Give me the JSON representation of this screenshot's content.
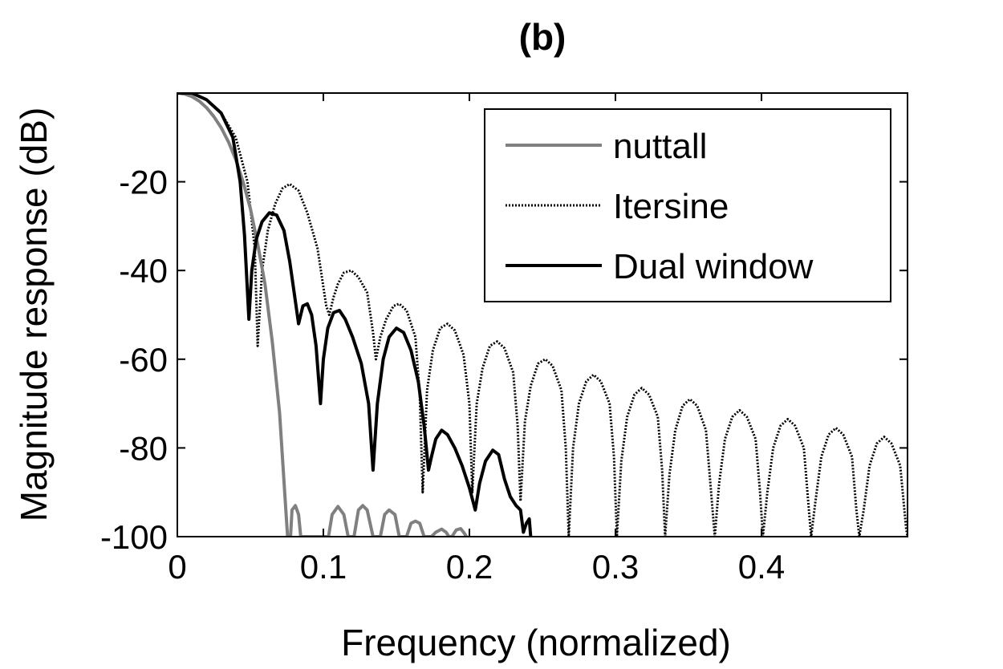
{
  "chart_data": {
    "type": "line",
    "title": "(b)",
    "xlabel": "Frequency (normalized)",
    "ylabel": "Magnitude response (dB)",
    "xlim": [
      0,
      0.5
    ],
    "ylim": [
      -100,
      0
    ],
    "xticks": [
      0,
      0.1,
      0.2,
      0.3,
      0.4
    ],
    "xtick_labels": [
      "0",
      "0.1",
      "0.2",
      "0.3",
      "0.4"
    ],
    "yticks": [
      -20,
      -40,
      -60,
      -80,
      -100
    ],
    "ytick_labels": [
      "-20",
      "-40",
      "-60",
      "-80",
      "-100"
    ],
    "grid": false,
    "legend_position": "top-right",
    "series": [
      {
        "name": "nuttall",
        "color": "#808080",
        "style": "solid",
        "points": [
          [
            0,
            0
          ],
          [
            0.005,
            -0.2
          ],
          [
            0.01,
            -0.8
          ],
          [
            0.015,
            -1.8
          ],
          [
            0.02,
            -3.3
          ],
          [
            0.025,
            -5.3
          ],
          [
            0.03,
            -7.8
          ],
          [
            0.035,
            -11
          ],
          [
            0.04,
            -15
          ],
          [
            0.045,
            -20
          ],
          [
            0.05,
            -26
          ],
          [
            0.055,
            -34
          ],
          [
            0.06,
            -43
          ],
          [
            0.065,
            -56
          ],
          [
            0.07,
            -72
          ],
          [
            0.0735,
            -90
          ],
          [
            0.0755,
            -100
          ],
          [
            0.0775,
            -100
          ],
          [
            0.0785,
            -94
          ],
          [
            0.0808,
            -93
          ],
          [
            0.083,
            -95
          ],
          [
            0.0845,
            -100
          ],
          [
            0.1035,
            -100
          ],
          [
            0.106,
            -95
          ],
          [
            0.11,
            -93.2
          ],
          [
            0.114,
            -95
          ],
          [
            0.117,
            -100
          ],
          [
            0.121,
            -100
          ],
          [
            0.124,
            -94
          ],
          [
            0.127,
            -93
          ],
          [
            0.13,
            -94
          ],
          [
            0.134,
            -100
          ],
          [
            0.139,
            -100
          ],
          [
            0.142,
            -95
          ],
          [
            0.145,
            -94
          ],
          [
            0.149,
            -95
          ],
          [
            0.152,
            -100
          ],
          [
            0.157,
            -100
          ],
          [
            0.16,
            -97
          ],
          [
            0.163,
            -96.5
          ],
          [
            0.166,
            -97
          ],
          [
            0.169,
            -100
          ],
          [
            0.174,
            -100
          ],
          [
            0.177,
            -99
          ],
          [
            0.181,
            -98.3
          ],
          [
            0.184,
            -99
          ],
          [
            0.186,
            -100
          ],
          [
            0.188,
            -100
          ],
          [
            0.191,
            -98.5
          ],
          [
            0.194,
            -98.2
          ],
          [
            0.196,
            -99
          ],
          [
            0.198,
            -100
          ]
        ]
      },
      {
        "name": "Itersine",
        "color": "#000000",
        "style": "dotted",
        "points": [
          [
            0,
            0
          ],
          [
            0.01,
            0
          ],
          [
            0.02,
            -1.5
          ],
          [
            0.03,
            -4.5
          ],
          [
            0.04,
            -10
          ],
          [
            0.048,
            -20
          ],
          [
            0.053,
            -35
          ],
          [
            0.055,
            -57
          ],
          [
            0.058,
            -40
          ],
          [
            0.062,
            -31
          ],
          [
            0.067,
            -25
          ],
          [
            0.072,
            -21.5
          ],
          [
            0.077,
            -20.5
          ],
          [
            0.083,
            -22
          ],
          [
            0.089,
            -27
          ],
          [
            0.096,
            -35
          ],
          [
            0.102,
            -48
          ],
          [
            0.104,
            -50
          ],
          [
            0.107,
            -46
          ],
          [
            0.11,
            -43
          ],
          [
            0.114,
            -40.5
          ],
          [
            0.119,
            -40
          ],
          [
            0.124,
            -41.5
          ],
          [
            0.13,
            -45
          ],
          [
            0.134,
            -54
          ],
          [
            0.136,
            -60
          ],
          [
            0.139,
            -55
          ],
          [
            0.143,
            -51
          ],
          [
            0.148,
            -48
          ],
          [
            0.152,
            -47.5
          ],
          [
            0.157,
            -49
          ],
          [
            0.163,
            -55
          ],
          [
            0.166,
            -68
          ],
          [
            0.168,
            -90
          ],
          [
            0.171,
            -67
          ],
          [
            0.175,
            -58
          ],
          [
            0.18,
            -53
          ],
          [
            0.185,
            -52
          ],
          [
            0.19,
            -53.5
          ],
          [
            0.196,
            -59
          ],
          [
            0.2,
            -70
          ],
          [
            0.202,
            -90
          ],
          [
            0.205,
            -70
          ],
          [
            0.209,
            -62
          ],
          [
            0.214,
            -57
          ],
          [
            0.219,
            -56
          ],
          [
            0.224,
            -57.5
          ],
          [
            0.23,
            -63
          ],
          [
            0.233,
            -75
          ],
          [
            0.235,
            -92
          ],
          [
            0.238,
            -74
          ],
          [
            0.242,
            -66
          ],
          [
            0.247,
            -61
          ],
          [
            0.252,
            -60
          ],
          [
            0.257,
            -61.5
          ],
          [
            0.263,
            -67
          ],
          [
            0.266,
            -80
          ],
          [
            0.268,
            -100
          ],
          [
            0.271,
            -80
          ],
          [
            0.275,
            -70
          ],
          [
            0.28,
            -65
          ],
          [
            0.285,
            -63.5
          ],
          [
            0.29,
            -65
          ],
          [
            0.296,
            -70
          ],
          [
            0.299,
            -82
          ],
          [
            0.301,
            -100
          ],
          [
            0.304,
            -83
          ],
          [
            0.308,
            -73
          ],
          [
            0.313,
            -68
          ],
          [
            0.318,
            -66.5
          ],
          [
            0.323,
            -68
          ],
          [
            0.329,
            -73
          ],
          [
            0.332,
            -85
          ],
          [
            0.334,
            -100
          ],
          [
            0.337,
            -86
          ],
          [
            0.341,
            -76
          ],
          [
            0.346,
            -70.5
          ],
          [
            0.351,
            -69
          ],
          [
            0.356,
            -70.5
          ],
          [
            0.362,
            -76
          ],
          [
            0.365,
            -88
          ],
          [
            0.368,
            -100
          ],
          [
            0.371,
            -88
          ],
          [
            0.375,
            -78
          ],
          [
            0.38,
            -73
          ],
          [
            0.385,
            -71.5
          ],
          [
            0.39,
            -73
          ],
          [
            0.396,
            -78
          ],
          [
            0.399,
            -90
          ],
          [
            0.401,
            -100
          ],
          [
            0.404,
            -90
          ],
          [
            0.408,
            -80
          ],
          [
            0.413,
            -75
          ],
          [
            0.418,
            -73.5
          ],
          [
            0.423,
            -75
          ],
          [
            0.429,
            -80
          ],
          [
            0.432,
            -92
          ],
          [
            0.434,
            -100
          ],
          [
            0.437,
            -92
          ],
          [
            0.441,
            -82
          ],
          [
            0.446,
            -77
          ],
          [
            0.451,
            -75.5
          ],
          [
            0.456,
            -77
          ],
          [
            0.462,
            -82
          ],
          [
            0.465,
            -94
          ],
          [
            0.467,
            -100
          ],
          [
            0.47,
            -94
          ],
          [
            0.474,
            -84
          ],
          [
            0.479,
            -79
          ],
          [
            0.484,
            -77.5
          ],
          [
            0.489,
            -79
          ],
          [
            0.495,
            -84
          ],
          [
            0.499,
            -98
          ],
          [
            0.5,
            -100
          ]
        ]
      },
      {
        "name": "Dual window",
        "color": "#000000",
        "style": "solid",
        "points": [
          [
            0,
            0
          ],
          [
            0.01,
            0
          ],
          [
            0.02,
            -1.5
          ],
          [
            0.03,
            -4.5
          ],
          [
            0.038,
            -10
          ],
          [
            0.043,
            -20
          ],
          [
            0.046,
            -32
          ],
          [
            0.049,
            -51
          ],
          [
            0.051,
            -40
          ],
          [
            0.054,
            -33
          ],
          [
            0.058,
            -29
          ],
          [
            0.063,
            -27
          ],
          [
            0.068,
            -27.5
          ],
          [
            0.073,
            -31
          ],
          [
            0.077,
            -38
          ],
          [
            0.08,
            -45
          ],
          [
            0.083,
            -52
          ],
          [
            0.086,
            -48
          ],
          [
            0.089,
            -47.5
          ],
          [
            0.092,
            -50
          ],
          [
            0.095,
            -57
          ],
          [
            0.098,
            -70
          ],
          [
            0.1,
            -60
          ],
          [
            0.103,
            -53
          ],
          [
            0.107,
            -49.5
          ],
          [
            0.111,
            -49
          ],
          [
            0.115,
            -51
          ],
          [
            0.12,
            -55
          ],
          [
            0.126,
            -61
          ],
          [
            0.131,
            -70
          ],
          [
            0.134,
            -85
          ],
          [
            0.137,
            -70
          ],
          [
            0.141,
            -60
          ],
          [
            0.145,
            -55
          ],
          [
            0.15,
            -53
          ],
          [
            0.155,
            -54
          ],
          [
            0.16,
            -58
          ],
          [
            0.165,
            -65
          ],
          [
            0.169,
            -75
          ],
          [
            0.172,
            -85
          ],
          [
            0.174,
            -82
          ],
          [
            0.177,
            -78
          ],
          [
            0.181,
            -76
          ],
          [
            0.185,
            -77
          ],
          [
            0.19,
            -80
          ],
          [
            0.195,
            -84
          ],
          [
            0.2,
            -89
          ],
          [
            0.204,
            -94
          ],
          [
            0.207,
            -88
          ],
          [
            0.211,
            -83
          ],
          [
            0.216,
            -80.5
          ],
          [
            0.22,
            -81.5
          ],
          [
            0.224,
            -87
          ],
          [
            0.228,
            -91
          ],
          [
            0.232,
            -93
          ],
          [
            0.235,
            -94
          ],
          [
            0.237,
            -99
          ],
          [
            0.239,
            -97
          ],
          [
            0.241,
            -96
          ],
          [
            0.242,
            -100
          ]
        ]
      }
    ]
  }
}
